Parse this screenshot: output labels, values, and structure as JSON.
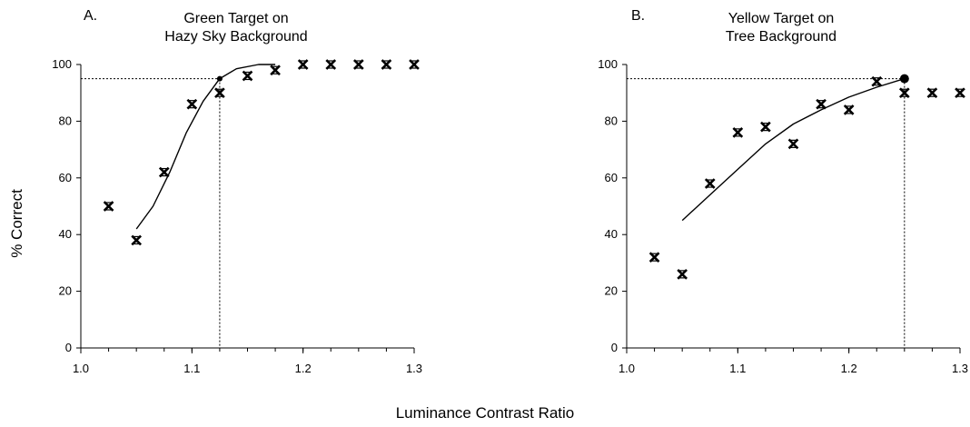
{
  "xlabel": "Luminance Contrast Ratio",
  "ylabel": "% Correct",
  "chart_data": [
    {
      "type": "scatter",
      "panel_label": "A.",
      "title": "Green Target on\nHazy Sky Background",
      "xlim": [
        1.0,
        1.3
      ],
      "ylim": [
        0,
        100
      ],
      "xticks": [
        "1.0",
        "1.1",
        "1.2",
        "1.3"
      ],
      "yticks": [
        "0",
        "20",
        "40",
        "60",
        "80",
        "100"
      ],
      "points": [
        {
          "x": 1.025,
          "y": 50
        },
        {
          "x": 1.05,
          "y": 38
        },
        {
          "x": 1.075,
          "y": 62
        },
        {
          "x": 1.1,
          "y": 86
        },
        {
          "x": 1.125,
          "y": 90
        },
        {
          "x": 1.15,
          "y": 96
        },
        {
          "x": 1.175,
          "y": 98
        },
        {
          "x": 1.2,
          "y": 100
        },
        {
          "x": 1.225,
          "y": 100
        },
        {
          "x": 1.25,
          "y": 100
        },
        {
          "x": 1.275,
          "y": 100
        },
        {
          "x": 1.3,
          "y": 100
        }
      ],
      "fit_curve": [
        {
          "x": 1.05,
          "y": 42
        },
        {
          "x": 1.065,
          "y": 50
        },
        {
          "x": 1.08,
          "y": 62
        },
        {
          "x": 1.095,
          "y": 76
        },
        {
          "x": 1.11,
          "y": 87
        },
        {
          "x": 1.125,
          "y": 95
        },
        {
          "x": 1.14,
          "y": 98.5
        },
        {
          "x": 1.16,
          "y": 100
        },
        {
          "x": 1.175,
          "y": 100
        }
      ],
      "threshold": {
        "x": 1.125,
        "y": 95
      }
    },
    {
      "type": "scatter",
      "panel_label": "B.",
      "title": "Yellow Target on\nTree Background",
      "xlim": [
        1.0,
        1.3
      ],
      "ylim": [
        0,
        100
      ],
      "xticks": [
        "1.0",
        "1.1",
        "1.2",
        "1.3"
      ],
      "yticks": [
        "0",
        "20",
        "40",
        "60",
        "80",
        "100"
      ],
      "points": [
        {
          "x": 1.025,
          "y": 32
        },
        {
          "x": 1.05,
          "y": 26
        },
        {
          "x": 1.075,
          "y": 58
        },
        {
          "x": 1.1,
          "y": 76
        },
        {
          "x": 1.125,
          "y": 78
        },
        {
          "x": 1.15,
          "y": 72
        },
        {
          "x": 1.175,
          "y": 86
        },
        {
          "x": 1.2,
          "y": 84
        },
        {
          "x": 1.225,
          "y": 94
        },
        {
          "x": 1.25,
          "y": 90
        },
        {
          "x": 1.275,
          "y": 90
        },
        {
          "x": 1.3,
          "y": 90
        }
      ],
      "fit_curve": [
        {
          "x": 1.05,
          "y": 45
        },
        {
          "x": 1.075,
          "y": 54
        },
        {
          "x": 1.1,
          "y": 63
        },
        {
          "x": 1.125,
          "y": 72
        },
        {
          "x": 1.15,
          "y": 79
        },
        {
          "x": 1.175,
          "y": 84
        },
        {
          "x": 1.2,
          "y": 88.5
        },
        {
          "x": 1.225,
          "y": 92
        },
        {
          "x": 1.25,
          "y": 95
        }
      ],
      "threshold": {
        "x": 1.25,
        "y": 95
      }
    }
  ]
}
